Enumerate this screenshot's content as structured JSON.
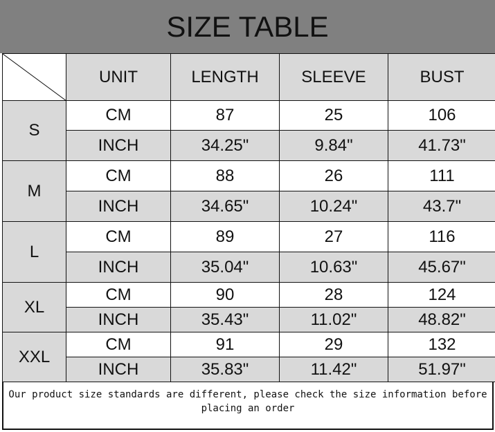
{
  "title": "SIZE TABLE",
  "headers": [
    "UNIT",
    "LENGTH",
    "SLEEVE",
    "BUST"
  ],
  "sizes": [
    {
      "size": "S",
      "rows": [
        [
          "CM",
          "87",
          "25",
          "106"
        ],
        [
          "INCH",
          "34.25\"",
          "9.84\"",
          "41.73\""
        ]
      ]
    },
    {
      "size": "M",
      "rows": [
        [
          "CM",
          "88",
          "26",
          "111"
        ],
        [
          "INCH",
          "34.65\"",
          "10.24\"",
          "43.7\""
        ]
      ]
    },
    {
      "size": "L",
      "rows": [
        [
          "CM",
          "89",
          "27",
          "116"
        ],
        [
          "INCH",
          "35.04\"",
          "10.63\"",
          "45.67\""
        ]
      ]
    },
    {
      "size": "XL",
      "rows": [
        [
          "CM",
          "90",
          "28",
          "124"
        ],
        [
          "INCH",
          "35.43\"",
          "11.02\"",
          "48.82\""
        ]
      ]
    },
    {
      "size": "XXL",
      "rows": [
        [
          "CM",
          "91",
          "29",
          "132"
        ],
        [
          "INCH",
          "35.83\"",
          "11.42\"",
          "51.97\""
        ]
      ]
    }
  ],
  "footer_note": "Our product size standards are different, please check the size information before placing an order",
  "colors": {
    "title_bg": "#808080",
    "cell_gray": "#d9d9d9"
  }
}
